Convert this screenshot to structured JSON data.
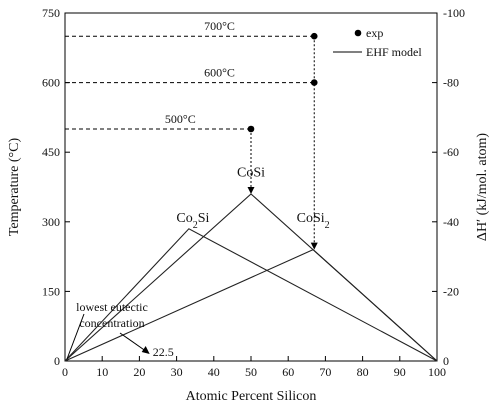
{
  "chart_data": {
    "type": "line",
    "xlabel": "Atomic Percent Silicon",
    "ylabel_left": "Temperature (°C)",
    "ylabel_right": "ΔHʹ (kJ/mol. atom)",
    "xlim": [
      0,
      100
    ],
    "ylim_left": [
      0,
      750
    ],
    "ylim_right": [
      0,
      -100
    ],
    "x_ticks": [
      0,
      10,
      20,
      30,
      40,
      50,
      60,
      70,
      80,
      90,
      100
    ],
    "y_ticks_left": [
      0,
      150,
      300,
      450,
      600,
      750
    ],
    "y_ticks_right": [
      0,
      -20,
      -40,
      -60,
      -80,
      -100
    ],
    "grid": false,
    "legend": {
      "position": "top-right",
      "entries": [
        {
          "label": "exp",
          "marker": "dot"
        },
        {
          "label": "EHF model",
          "marker": "line"
        }
      ]
    },
    "series": [
      {
        "name": "Co2Si",
        "x": [
          0,
          33.3,
          100
        ],
        "y_right": [
          0,
          -38,
          0
        ]
      },
      {
        "name": "CoSi",
        "x": [
          0,
          50,
          100
        ],
        "y_right": [
          0,
          -48,
          0
        ]
      },
      {
        "name": "CoSi2",
        "x": [
          0,
          66.7,
          100
        ],
        "y_right": [
          0,
          -32,
          0
        ]
      }
    ],
    "experimental_points": [
      {
        "label": "500°C",
        "x": 50,
        "temperature": 500
      },
      {
        "label": "600°C",
        "x": 67,
        "temperature": 600
      },
      {
        "label": "700°C",
        "x": 67,
        "temperature": 700
      }
    ],
    "annotations": {
      "phase_labels": [
        {
          "text": "Co₂Si",
          "x": 33.3
        },
        {
          "text": "CoSi",
          "x": 50
        },
        {
          "text": "CoSi₂",
          "x": 66.7
        }
      ],
      "eutectic_label_line1": "lowest eutectic",
      "eutectic_label_line2": "concentration",
      "eutectic_value_label": "22.5",
      "eutectic_x": 22.5
    }
  }
}
